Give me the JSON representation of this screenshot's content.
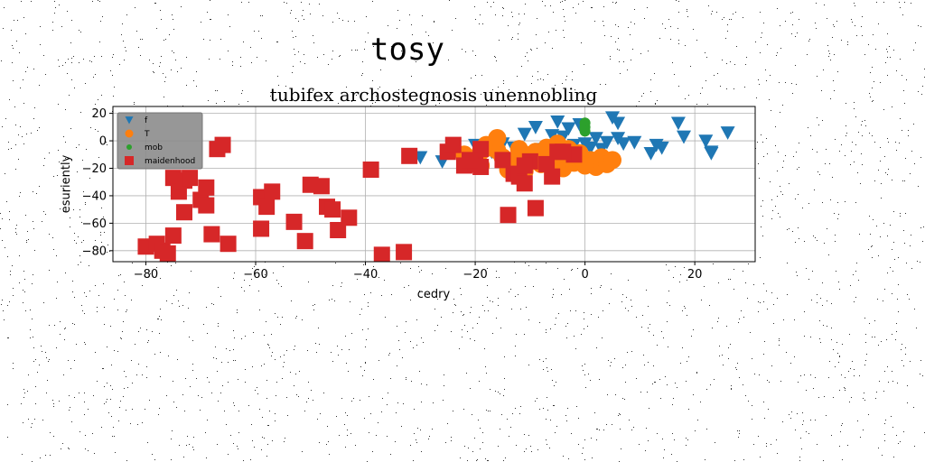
{
  "chart_data": {
    "type": "scatter",
    "suptitle": "tosy",
    "title": "tubifex archostegnosis unennobling",
    "xlabel": "cedry",
    "ylabel": "esuriently",
    "xlim": [
      -86,
      31
    ],
    "ylim": [
      -88,
      25
    ],
    "xticks": [
      -80,
      -60,
      -40,
      -20,
      0,
      20
    ],
    "yticks": [
      -80,
      -60,
      -40,
      -20,
      0,
      20
    ],
    "xtick_labels": [
      "−80",
      "−60",
      "−40",
      "−20",
      "0",
      "20"
    ],
    "ytick_labels": [
      "−80",
      "−60",
      "−40",
      "−20",
      "0",
      "20"
    ],
    "grid": true,
    "legend_position": "upper-left",
    "series": [
      {
        "name": "f",
        "marker": "triangle-down",
        "color": "#1f77b4",
        "points": [
          [
            -30,
            -12
          ],
          [
            -26,
            -15
          ],
          [
            -20,
            -3
          ],
          [
            -17,
            -8
          ],
          [
            -15,
            -2
          ],
          [
            -13,
            -5
          ],
          [
            -11,
            5
          ],
          [
            -8,
            -6
          ],
          [
            -7,
            -8
          ],
          [
            -6,
            4
          ],
          [
            -5,
            -8
          ],
          [
            -4,
            3
          ],
          [
            -2,
            -3
          ],
          [
            -5,
            14
          ],
          [
            -3,
            9
          ],
          [
            -1,
            12
          ],
          [
            0,
            -2
          ],
          [
            1,
            -5
          ],
          [
            2,
            2
          ],
          [
            4,
            -1
          ],
          [
            5,
            17
          ],
          [
            6,
            2
          ],
          [
            7,
            -2
          ],
          [
            6,
            13
          ],
          [
            9,
            -1
          ],
          [
            12,
            -9
          ],
          [
            13,
            -3
          ],
          [
            14,
            -5
          ],
          [
            17,
            13
          ],
          [
            18,
            3
          ],
          [
            22,
            0
          ],
          [
            23,
            -8
          ],
          [
            23,
            -9
          ],
          [
            26,
            6
          ],
          [
            3,
            -6
          ],
          [
            -9,
            10
          ]
        ]
      },
      {
        "name": "T",
        "marker": "circle",
        "color": "#ff7f0e",
        "points": [
          [
            -22,
            -10
          ],
          [
            -19,
            -8
          ],
          [
            -18,
            -3
          ],
          [
            -17,
            -5
          ],
          [
            -16,
            -7
          ],
          [
            -15,
            -12
          ],
          [
            -14,
            -15
          ],
          [
            -13,
            -18
          ],
          [
            -12,
            -20
          ],
          [
            -11,
            -10
          ],
          [
            -10,
            -14
          ],
          [
            -9,
            -8
          ],
          [
            -8,
            -17
          ],
          [
            -7,
            -5
          ],
          [
            -6,
            -12
          ],
          [
            -5,
            -2
          ],
          [
            -4,
            -20
          ],
          [
            -3,
            -6
          ],
          [
            -2,
            -16
          ],
          [
            -1,
            -9
          ],
          [
            1,
            -14
          ],
          [
            2,
            -19
          ],
          [
            3,
            -12
          ],
          [
            4,
            -17
          ],
          [
            5,
            -14
          ],
          [
            -16,
            2
          ],
          [
            -12,
            -6
          ],
          [
            -14,
            -21
          ],
          [
            -19,
            -18
          ],
          [
            -11,
            -22
          ],
          [
            -3,
            -12
          ],
          [
            0,
            -18
          ]
        ]
      },
      {
        "name": "mob",
        "marker": "circle",
        "color": "#2ca02c",
        "points": [
          [
            0,
            13
          ],
          [
            0,
            10
          ],
          [
            0,
            7
          ]
        ]
      },
      {
        "name": "maidenhood",
        "marker": "square",
        "color": "#d62728",
        "points": [
          [
            -80,
            -77
          ],
          [
            -78,
            -75
          ],
          [
            -77,
            -80
          ],
          [
            -76,
            -82
          ],
          [
            -75,
            -69
          ],
          [
            -75,
            -27
          ],
          [
            -74,
            -37
          ],
          [
            -73,
            -29
          ],
          [
            -73,
            -52
          ],
          [
            -72,
            -27
          ],
          [
            -70,
            -43
          ],
          [
            -69,
            -34
          ],
          [
            -69,
            -47
          ],
          [
            -68,
            -68
          ],
          [
            -67,
            -6
          ],
          [
            -66,
            -3
          ],
          [
            -65,
            -75
          ],
          [
            -59,
            -64
          ],
          [
            -59,
            -41
          ],
          [
            -58,
            -48
          ],
          [
            -57,
            -37
          ],
          [
            -53,
            -59
          ],
          [
            -51,
            -73
          ],
          [
            -50,
            -32
          ],
          [
            -48,
            -33
          ],
          [
            -47,
            -48
          ],
          [
            -46,
            -50
          ],
          [
            -45,
            -65
          ],
          [
            -43,
            -56
          ],
          [
            -39,
            -21
          ],
          [
            -37,
            -83
          ],
          [
            -33,
            -81
          ],
          [
            -32,
            -11
          ],
          [
            -25,
            -8
          ],
          [
            -24,
            -3
          ],
          [
            -22,
            -18
          ],
          [
            -20,
            -17
          ],
          [
            -19,
            -19
          ],
          [
            -19,
            -6
          ],
          [
            -14,
            -54
          ],
          [
            -13,
            -24
          ],
          [
            -12,
            -26
          ],
          [
            -11,
            -31
          ],
          [
            -10,
            -15
          ],
          [
            -9,
            -49
          ],
          [
            -7,
            -17
          ],
          [
            -6,
            -26
          ],
          [
            -5,
            -8
          ],
          [
            -2,
            -10
          ],
          [
            -4,
            -8
          ],
          [
            -11,
            -18
          ],
          [
            -15,
            -14
          ],
          [
            -21,
            -14
          ]
        ]
      }
    ]
  }
}
